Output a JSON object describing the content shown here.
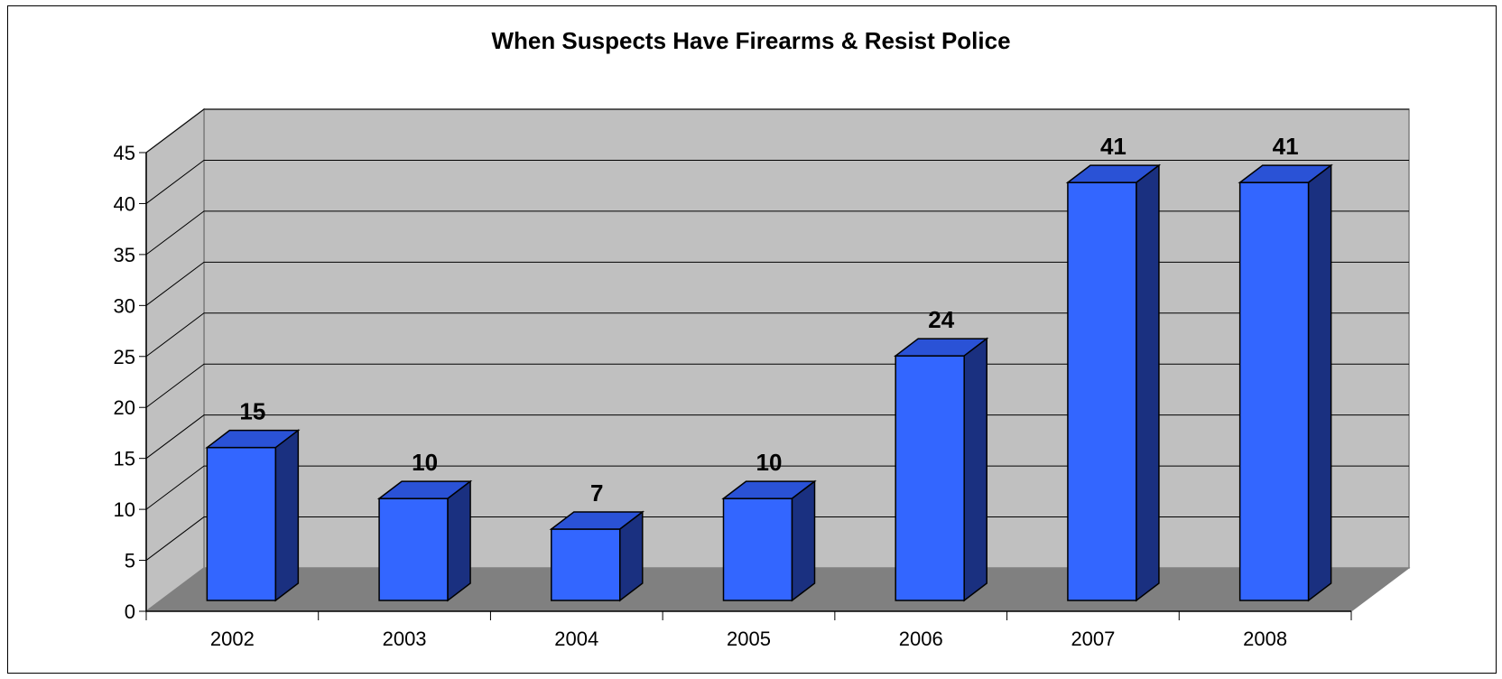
{
  "chart_data": {
    "type": "bar",
    "title": "When Suspects Have Firearms & Resist Police",
    "categories": [
      "2002",
      "2003",
      "2004",
      "2005",
      "2006",
      "2007",
      "2008"
    ],
    "values": [
      15,
      10,
      7,
      10,
      24,
      41,
      41
    ],
    "ylim": [
      0,
      45
    ],
    "yticks": [
      "0",
      "5",
      "10",
      "15",
      "20",
      "25",
      "30",
      "35",
      "40",
      "45"
    ],
    "xlabel": "",
    "ylabel": "",
    "grid": true,
    "legend": "none",
    "three_d": true,
    "colors": {
      "bar_front": "#3366ff",
      "bar_top": "#2a52d6",
      "bar_side": "#1a3080",
      "back_wall": "#c0c0c0",
      "side_wall": "#c0c0c0",
      "floor": "#808080"
    }
  }
}
